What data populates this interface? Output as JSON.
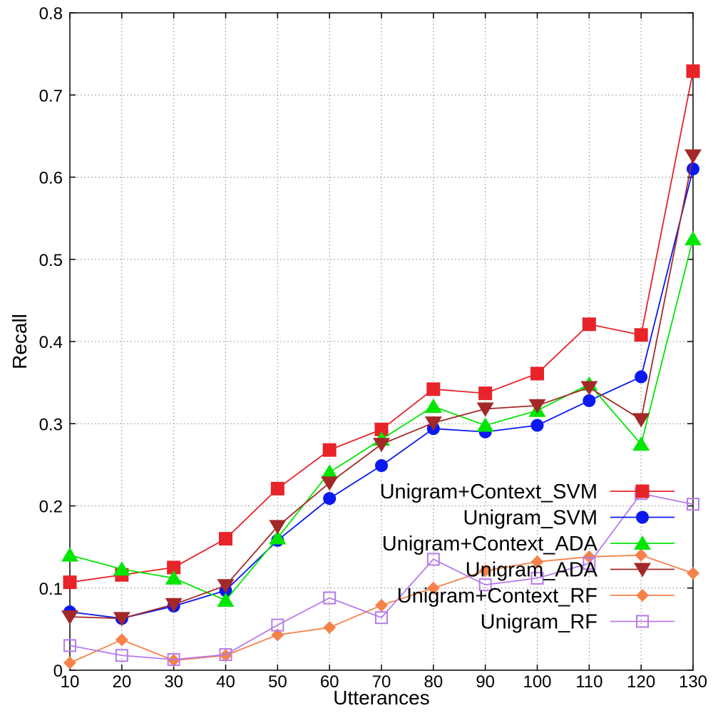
{
  "chart_data": {
    "type": "line",
    "xlabel": "Utterances",
    "ylabel": "Recall",
    "xlim": [
      10,
      130
    ],
    "ylim": [
      0,
      0.8
    ],
    "x": [
      10,
      20,
      30,
      40,
      50,
      60,
      70,
      80,
      90,
      100,
      110,
      120,
      130
    ],
    "x_tick_labels": [
      "10",
      "20",
      "30",
      "40",
      "50",
      "60",
      "70",
      "80",
      "90",
      "100",
      "110",
      "120",
      "130"
    ],
    "y_ticks": [
      0,
      0.1,
      0.2,
      0.3,
      0.4,
      0.5,
      0.6,
      0.7,
      0.8
    ],
    "y_tick_labels": [
      "0",
      "0.1",
      "0.2",
      "0.3",
      "0.4",
      "0.5",
      "0.6",
      "0.7",
      "0.8"
    ],
    "grid": true,
    "legend_position": "bottom-right",
    "series": [
      {
        "name": "Unigram+Context_SVM",
        "color": "#e8232a",
        "marker": "square-filled",
        "values": [
          0.107,
          0.116,
          0.125,
          0.16,
          0.221,
          0.268,
          0.293,
          0.342,
          0.337,
          0.361,
          0.421,
          0.408,
          0.729
        ]
      },
      {
        "name": "Unigram_SVM",
        "color": "#0a19f0",
        "marker": "circle-filled",
        "values": [
          0.071,
          0.063,
          0.078,
          0.097,
          0.158,
          0.209,
          0.249,
          0.294,
          0.29,
          0.298,
          0.328,
          0.357,
          0.61
        ]
      },
      {
        "name": "Unigram+Context_ADA",
        "color": "#00e600",
        "marker": "triangle-up-filled",
        "values": [
          0.14,
          0.123,
          0.112,
          0.085,
          0.161,
          0.241,
          0.281,
          0.321,
          0.298,
          0.316,
          0.348,
          0.275,
          0.525
        ]
      },
      {
        "name": "Unigram_ADA",
        "color": "#a32828",
        "marker": "triangle-down-filled",
        "values": [
          0.065,
          0.063,
          0.08,
          0.103,
          0.175,
          0.228,
          0.275,
          0.301,
          0.318,
          0.322,
          0.344,
          0.305,
          0.626
        ]
      },
      {
        "name": "Unigram+Context_RF",
        "color": "#f5824b",
        "marker": "diamond-filled",
        "values": [
          0.009,
          0.037,
          0.012,
          0.018,
          0.043,
          0.052,
          0.079,
          0.1,
          0.121,
          0.132,
          0.138,
          0.14,
          0.118
        ]
      },
      {
        "name": "Unigram_RF",
        "color": "#b57bec",
        "marker": "square-open",
        "values": [
          0.03,
          0.018,
          0.013,
          0.019,
          0.055,
          0.088,
          0.064,
          0.135,
          0.104,
          0.112,
          0.13,
          0.215,
          0.202
        ]
      }
    ]
  }
}
